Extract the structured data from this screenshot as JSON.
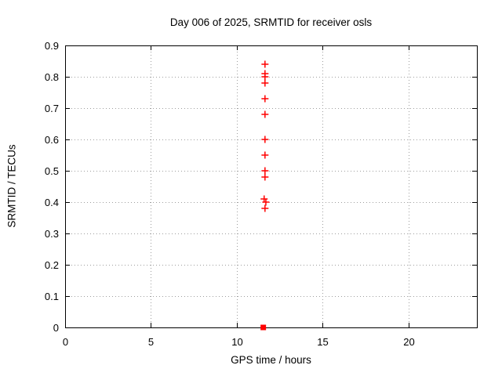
{
  "chart_data": {
    "type": "scatter",
    "title": "Day 006 of 2025, SRMTID for receiver osls",
    "xlabel": "GPS time / hours",
    "ylabel": "SRMTID / TECUs",
    "xlim": [
      0,
      24
    ],
    "ylim": [
      0,
      0.9
    ],
    "grid": true,
    "legend": "none",
    "xticks": [
      [
        0,
        "0"
      ],
      [
        5,
        "5"
      ],
      [
        10,
        "10"
      ],
      [
        15,
        "15"
      ],
      [
        20,
        "20"
      ]
    ],
    "yticks": [
      [
        0,
        "0"
      ],
      [
        0.1,
        "0.1"
      ],
      [
        0.2,
        "0.2"
      ],
      [
        0.3,
        "0.3"
      ],
      [
        0.4,
        "0.4"
      ],
      [
        0.5,
        "0.5"
      ],
      [
        0.6,
        "0.6"
      ],
      [
        0.7,
        "0.7"
      ],
      [
        0.8,
        "0.8"
      ],
      [
        0.9,
        "0.9"
      ]
    ],
    "colors": {
      "marker": "#ff0000",
      "grid": "#9e9e9e",
      "border": "#000000",
      "background": "#ffffff"
    },
    "series": [
      {
        "marker": "plus",
        "color": "#ff0000",
        "points": [
          [
            11.65,
            0.84
          ],
          [
            11.65,
            0.81
          ],
          [
            11.65,
            0.8
          ],
          [
            11.65,
            0.78
          ],
          [
            11.65,
            0.73
          ],
          [
            11.65,
            0.68
          ],
          [
            11.65,
            0.6
          ],
          [
            11.65,
            0.55
          ],
          [
            11.65,
            0.5
          ],
          [
            11.65,
            0.48
          ],
          [
            11.6,
            0.41
          ],
          [
            11.7,
            0.4
          ],
          [
            11.65,
            0.38
          ]
        ]
      },
      {
        "marker": "filled-square",
        "color": "#ff0000",
        "points": [
          [
            11.55,
            0.0
          ]
        ]
      }
    ]
  }
}
